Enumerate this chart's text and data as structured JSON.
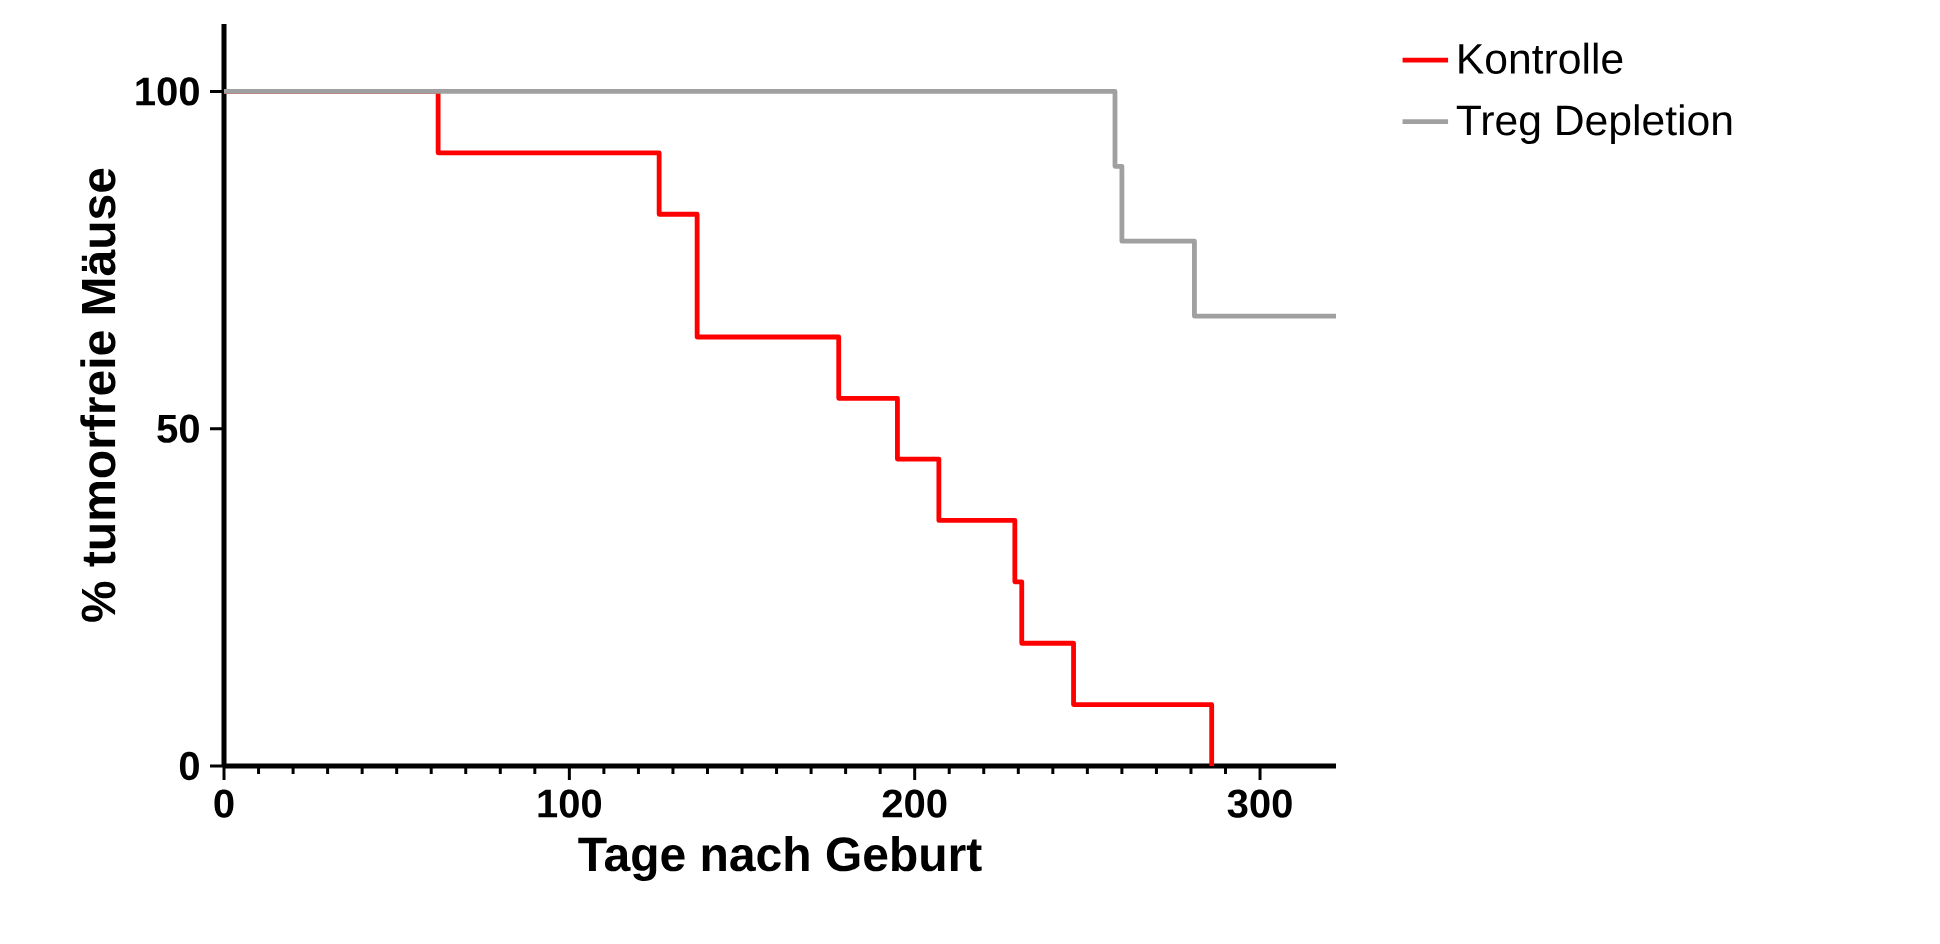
{
  "chart_data": {
    "type": "step",
    "xlabel": "Tage nach Geburt",
    "ylabel": "% tumorfreie Mäuse",
    "xlim": [
      0,
      322
    ],
    "ylim": [
      0,
      110
    ],
    "xticks": [
      0,
      100,
      200,
      300
    ],
    "yticks": [
      0,
      50,
      100
    ],
    "legend": "top right",
    "grid": false,
    "series": [
      {
        "name": "Kontrolle",
        "color": "#ff0000",
        "x": [
          0,
          62,
          126,
          137,
          178,
          195,
          207,
          229,
          231,
          246,
          286
        ],
        "values": [
          100,
          90.9,
          81.8,
          63.6,
          54.5,
          45.5,
          36.4,
          27.3,
          18.2,
          9.1,
          0
        ]
      },
      {
        "name": "Treg Depletion",
        "color": "#a0a0a0",
        "x": [
          0,
          258,
          260,
          281,
          322
        ],
        "values": [
          100,
          88.9,
          77.8,
          66.7,
          66.7
        ]
      }
    ]
  }
}
